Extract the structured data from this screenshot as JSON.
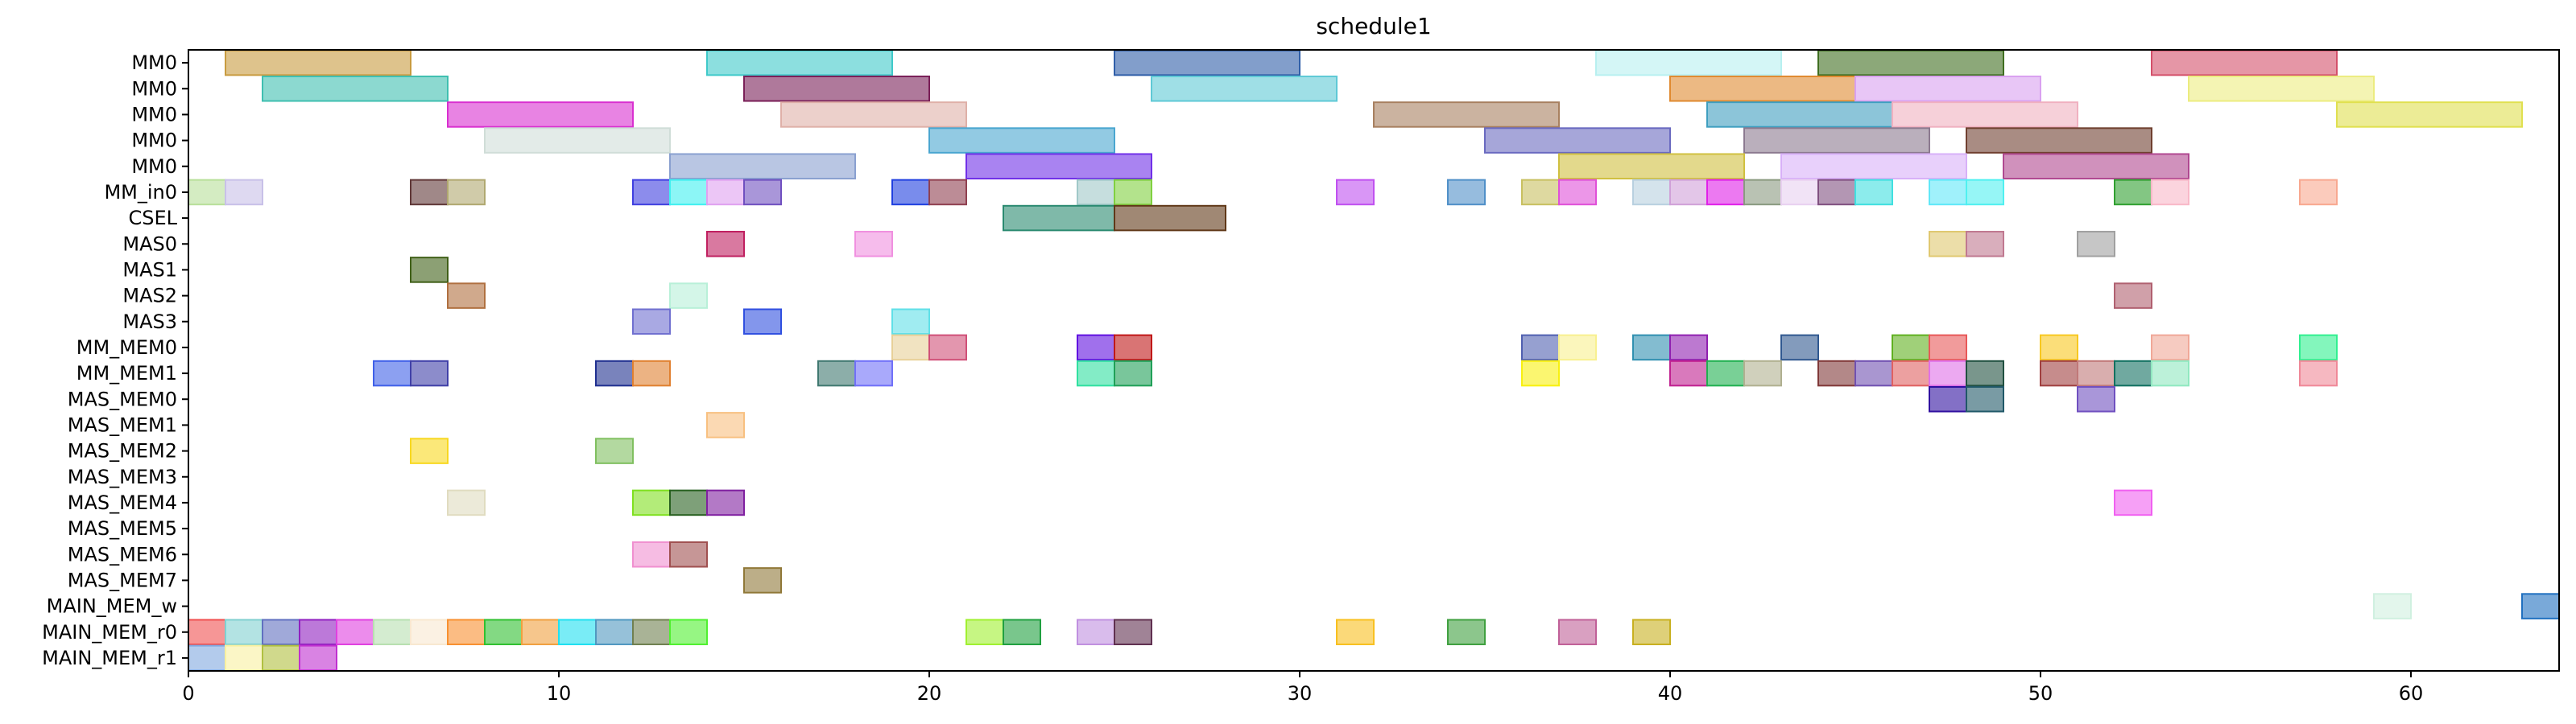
{
  "chart_data": {
    "type": "gantt",
    "title": "schedule1",
    "xlabel": "",
    "ylabel": "",
    "xlim": [
      0,
      64
    ],
    "xticks": [
      0,
      10,
      20,
      30,
      40,
      50,
      60
    ],
    "grid": false,
    "rows": [
      "MM0",
      "MM0",
      "MM0",
      "MM0",
      "MM0",
      "MM_in0",
      "CSEL",
      "MAS0",
      "MAS1",
      "MAS2",
      "MAS3",
      "MM_MEM0",
      "MM_MEM1",
      "MAS_MEM0",
      "MAS_MEM1",
      "MAS_MEM2",
      "MAS_MEM3",
      "MAS_MEM4",
      "MAS_MEM5",
      "MAS_MEM6",
      "MAS_MEM7",
      "MAIN_MEM_w",
      "MAIN_MEM_r0",
      "MAIN_MEM_r1"
    ],
    "bars": [
      {
        "row": 0,
        "start": 1,
        "end": 6,
        "color": "#c89b40"
      },
      {
        "row": 0,
        "start": 14,
        "end": 19,
        "color": "#3fc9c9"
      },
      {
        "row": 0,
        "start": 25,
        "end": 30,
        "color": "#2f5ea8"
      },
      {
        "row": 0,
        "start": 38,
        "end": 43,
        "color": "#b8f0f0"
      },
      {
        "row": 0,
        "start": 44,
        "end": 49,
        "color": "#3f6e20"
      },
      {
        "row": 0,
        "start": 53,
        "end": 58,
        "color": "#d4506a"
      },
      {
        "row": 1,
        "start": 2,
        "end": 7,
        "color": "#3fbfb0"
      },
      {
        "row": 1,
        "start": 15,
        "end": 20,
        "color": "#7a2058"
      },
      {
        "row": 1,
        "start": 26,
        "end": 31,
        "color": "#5fc9d6"
      },
      {
        "row": 1,
        "start": 40,
        "end": 45,
        "color": "#e08a30"
      },
      {
        "row": 1,
        "start": 45,
        "end": 50,
        "color": "#d9a0f0"
      },
      {
        "row": 1,
        "start": 54,
        "end": 59,
        "color": "#ecec80"
      },
      {
        "row": 2,
        "start": 7,
        "end": 12,
        "color": "#d930d0"
      },
      {
        "row": 2,
        "start": 16,
        "end": 21,
        "color": "#dfb0a8"
      },
      {
        "row": 2,
        "start": 32,
        "end": 37,
        "color": "#a88060"
      },
      {
        "row": 2,
        "start": 41,
        "end": 46,
        "color": "#3f9fc0"
      },
      {
        "row": 2,
        "start": 46,
        "end": 51,
        "color": "#f0b0c0"
      },
      {
        "row": 2,
        "start": 58,
        "end": 63,
        "color": "#e0e050"
      },
      {
        "row": 3,
        "start": 8,
        "end": 13,
        "color": "#d0ddd8"
      },
      {
        "row": 3,
        "start": 20,
        "end": 25,
        "color": "#4aa6d0"
      },
      {
        "row": 3,
        "start": 35,
        "end": 40,
        "color": "#6a6ac0"
      },
      {
        "row": 3,
        "start": 42,
        "end": 47,
        "color": "#8c7a90"
      },
      {
        "row": 3,
        "start": 48,
        "end": 53,
        "color": "#704030"
      },
      {
        "row": 4,
        "start": 13,
        "end": 18,
        "color": "#8aa0d0"
      },
      {
        "row": 4,
        "start": 21,
        "end": 26,
        "color": "#7030e8"
      },
      {
        "row": 4,
        "start": 37,
        "end": 42,
        "color": "#d0c040"
      },
      {
        "row": 4,
        "start": 43,
        "end": 48,
        "color": "#d8b0f8"
      },
      {
        "row": 4,
        "start": 49,
        "end": 54,
        "color": "#b04890"
      },
      {
        "row": 5,
        "start": 0,
        "end": 1,
        "color": "#b8e09a"
      },
      {
        "row": 5,
        "start": 1,
        "end": 2,
        "color": "#c8c0e8"
      },
      {
        "row": 5,
        "start": 6,
        "end": 7,
        "color": "#603838"
      },
      {
        "row": 5,
        "start": 7,
        "end": 8,
        "color": "#b0a870"
      },
      {
        "row": 5,
        "start": 12,
        "end": 13,
        "color": "#4040e0"
      },
      {
        "row": 5,
        "start": 13,
        "end": 14,
        "color": "#40f0f0"
      },
      {
        "row": 5,
        "start": 14,
        "end": 15,
        "color": "#e0a0f0"
      },
      {
        "row": 5,
        "start": 15,
        "end": 16,
        "color": "#7050c0"
      },
      {
        "row": 5,
        "start": 19,
        "end": 20,
        "color": "#2040e0"
      },
      {
        "row": 5,
        "start": 20,
        "end": 21,
        "color": "#904050"
      },
      {
        "row": 5,
        "start": 24,
        "end": 25,
        "color": "#a0c8c8"
      },
      {
        "row": 5,
        "start": 25,
        "end": 26,
        "color": "#80d040"
      },
      {
        "row": 5,
        "start": 31,
        "end": 32,
        "color": "#c050f0"
      },
      {
        "row": 5,
        "start": 34,
        "end": 35,
        "color": "#5090c8"
      },
      {
        "row": 5,
        "start": 36,
        "end": 37,
        "color": "#c8c060"
      },
      {
        "row": 5,
        "start": 37,
        "end": 38,
        "color": "#e050d8"
      },
      {
        "row": 5,
        "start": 39,
        "end": 40,
        "color": "#b8d0e0"
      },
      {
        "row": 5,
        "start": 40,
        "end": 41,
        "color": "#d0a0d8"
      },
      {
        "row": 5,
        "start": 41,
        "end": 42,
        "color": "#e020e8"
      },
      {
        "row": 5,
        "start": 42,
        "end": 43,
        "color": "#8a9a80"
      },
      {
        "row": 5,
        "start": 43,
        "end": 44,
        "color": "#e8d0f0"
      },
      {
        "row": 5,
        "start": 44,
        "end": 45,
        "color": "#805080"
      },
      {
        "row": 5,
        "start": 45,
        "end": 46,
        "color": "#40e0e0"
      },
      {
        "row": 5,
        "start": 47,
        "end": 48,
        "color": "#60e8f8"
      },
      {
        "row": 5,
        "start": 48,
        "end": 49,
        "color": "#50f0f0"
      },
      {
        "row": 5,
        "start": 52,
        "end": 53,
        "color": "#30a030"
      },
      {
        "row": 5,
        "start": 53,
        "end": 54,
        "color": "#f8b8c8"
      },
      {
        "row": 5,
        "start": 57,
        "end": 58,
        "color": "#f8a890"
      },
      {
        "row": 6,
        "start": 22,
        "end": 25,
        "color": "#2a8a70"
      },
      {
        "row": 6,
        "start": 25,
        "end": 28,
        "color": "#603818"
      },
      {
        "row": 7,
        "start": 14,
        "end": 15,
        "color": "#c02060"
      },
      {
        "row": 7,
        "start": 18,
        "end": 19,
        "color": "#f090e0"
      },
      {
        "row": 7,
        "start": 47,
        "end": 48,
        "color": "#e0c870"
      },
      {
        "row": 7,
        "start": 48,
        "end": 49,
        "color": "#c07890"
      },
      {
        "row": 7,
        "start": 51,
        "end": 52,
        "color": "#a0a0a0"
      },
      {
        "row": 8,
        "start": 6,
        "end": 7,
        "color": "#406018"
      },
      {
        "row": 9,
        "start": 7,
        "end": 8,
        "color": "#b07040"
      },
      {
        "row": 9,
        "start": 13,
        "end": 14,
        "color": "#b8f0d8"
      },
      {
        "row": 9,
        "start": 52,
        "end": 53,
        "color": "#b06070"
      },
      {
        "row": 10,
        "start": 12,
        "end": 13,
        "color": "#7070d0"
      },
      {
        "row": 10,
        "start": 15,
        "end": 16,
        "color": "#3050e0"
      },
      {
        "row": 10,
        "start": 19,
        "end": 20,
        "color": "#60e0e8"
      },
      {
        "row": 11,
        "start": 19,
        "end": 20,
        "color": "#e8d098"
      },
      {
        "row": 11,
        "start": 20,
        "end": 21,
        "color": "#d05078"
      },
      {
        "row": 11,
        "start": 24,
        "end": 25,
        "color": "#6010e0"
      },
      {
        "row": 11,
        "start": 25,
        "end": 26,
        "color": "#c01818"
      },
      {
        "row": 11,
        "start": 36,
        "end": 37,
        "color": "#5060b0"
      },
      {
        "row": 11,
        "start": 37,
        "end": 38,
        "color": "#f8f090"
      },
      {
        "row": 11,
        "start": 39,
        "end": 40,
        "color": "#3090b0"
      },
      {
        "row": 11,
        "start": 40,
        "end": 41,
        "color": "#9020b0"
      },
      {
        "row": 11,
        "start": 43,
        "end": 44,
        "color": "#305890"
      },
      {
        "row": 11,
        "start": 46,
        "end": 47,
        "color": "#60b020"
      },
      {
        "row": 11,
        "start": 47,
        "end": 48,
        "color": "#e85858"
      },
      {
        "row": 11,
        "start": 50,
        "end": 51,
        "color": "#f8c820"
      },
      {
        "row": 11,
        "start": 53,
        "end": 54,
        "color": "#f0a898"
      },
      {
        "row": 11,
        "start": 57,
        "end": 58,
        "color": "#30f090"
      },
      {
        "row": 12,
        "start": 5,
        "end": 6,
        "color": "#4060e8"
      },
      {
        "row": 12,
        "start": 6,
        "end": 7,
        "color": "#4040a8"
      },
      {
        "row": 12,
        "start": 11,
        "end": 12,
        "color": "#203090"
      },
      {
        "row": 12,
        "start": 12,
        "end": 13,
        "color": "#e08030"
      },
      {
        "row": 12,
        "start": 17,
        "end": 18,
        "color": "#407870"
      },
      {
        "row": 12,
        "start": 18,
        "end": 19,
        "color": "#7070f8"
      },
      {
        "row": 12,
        "start": 24,
        "end": 25,
        "color": "#30e0a0"
      },
      {
        "row": 12,
        "start": 25,
        "end": 26,
        "color": "#20a058"
      },
      {
        "row": 12,
        "start": 36,
        "end": 37,
        "color": "#f8f010"
      },
      {
        "row": 12,
        "start": 40,
        "end": 41,
        "color": "#c02090"
      },
      {
        "row": 12,
        "start": 41,
        "end": 42,
        "color": "#20b050"
      },
      {
        "row": 12,
        "start": 42,
        "end": 43,
        "color": "#b0b090"
      },
      {
        "row": 12,
        "start": 44,
        "end": 45,
        "color": "#803838"
      },
      {
        "row": 12,
        "start": 45,
        "end": 46,
        "color": "#7050b0"
      },
      {
        "row": 12,
        "start": 46,
        "end": 47,
        "color": "#e06060"
      },
      {
        "row": 12,
        "start": 47,
        "end": 48,
        "color": "#e070e8"
      },
      {
        "row": 12,
        "start": 48,
        "end": 49,
        "color": "#205040"
      },
      {
        "row": 12,
        "start": 50,
        "end": 51,
        "color": "#a04040"
      },
      {
        "row": 12,
        "start": 51,
        "end": 52,
        "color": "#c07878"
      },
      {
        "row": 12,
        "start": 52,
        "end": 53,
        "color": "#107060"
      },
      {
        "row": 12,
        "start": 53,
        "end": 54,
        "color": "#90e8c0"
      },
      {
        "row": 12,
        "start": 57,
        "end": 58,
        "color": "#f08898"
      },
      {
        "row": 13,
        "start": 47,
        "end": 48,
        "color": "#3010a0"
      },
      {
        "row": 13,
        "start": 48,
        "end": 49,
        "color": "#205868"
      },
      {
        "row": 13,
        "start": 51,
        "end": 52,
        "color": "#7050c0"
      },
      {
        "row": 14,
        "start": 14,
        "end": 15,
        "color": "#f8c080"
      },
      {
        "row": 15,
        "start": 6,
        "end": 7,
        "color": "#f8d820"
      },
      {
        "row": 15,
        "start": 11,
        "end": 12,
        "color": "#80c060"
      },
      {
        "row": 17,
        "start": 7,
        "end": 8,
        "color": "#e0dcc0"
      },
      {
        "row": 17,
        "start": 12,
        "end": 13,
        "color": "#80e020"
      },
      {
        "row": 17,
        "start": 13,
        "end": 14,
        "color": "#286020"
      },
      {
        "row": 17,
        "start": 14,
        "end": 15,
        "color": "#8020a0"
      },
      {
        "row": 17,
        "start": 52,
        "end": 53,
        "color": "#f060f0"
      },
      {
        "row": 19,
        "start": 12,
        "end": 13,
        "color": "#f090d0"
      },
      {
        "row": 19,
        "start": 13,
        "end": 14,
        "color": "#a05050"
      },
      {
        "row": 20,
        "start": 15,
        "end": 16,
        "color": "#907838"
      },
      {
        "row": 21,
        "start": 59,
        "end": 60,
        "color": "#d0f0e0"
      },
      {
        "row": 21,
        "start": 63,
        "end": 64,
        "color": "#2070c0"
      },
      {
        "row": 22,
        "start": 0,
        "end": 1,
        "color": "#f05050"
      },
      {
        "row": 22,
        "start": 1,
        "end": 2,
        "color": "#80d0d0"
      },
      {
        "row": 22,
        "start": 2,
        "end": 3,
        "color": "#6070c0"
      },
      {
        "row": 22,
        "start": 3,
        "end": 4,
        "color": "#9020c0"
      },
      {
        "row": 22,
        "start": 4,
        "end": 5,
        "color": "#e040e0"
      },
      {
        "row": 22,
        "start": 5,
        "end": 6,
        "color": "#b8e0b0"
      },
      {
        "row": 22,
        "start": 6,
        "end": 7,
        "color": "#f8e8d0"
      },
      {
        "row": 22,
        "start": 7,
        "end": 8,
        "color": "#f89030"
      },
      {
        "row": 22,
        "start": 8,
        "end": 9,
        "color": "#30c030"
      },
      {
        "row": 22,
        "start": 9,
        "end": 10,
        "color": "#f0a040"
      },
      {
        "row": 22,
        "start": 10,
        "end": 11,
        "color": "#20e0f0"
      },
      {
        "row": 22,
        "start": 11,
        "end": 12,
        "color": "#5098c0"
      },
      {
        "row": 22,
        "start": 12,
        "end": 13,
        "color": "#708050"
      },
      {
        "row": 22,
        "start": 13,
        "end": 14,
        "color": "#50f030"
      },
      {
        "row": 22,
        "start": 21,
        "end": 22,
        "color": "#a0f030"
      },
      {
        "row": 22,
        "start": 22,
        "end": 23,
        "color": "#20a040"
      },
      {
        "row": 22,
        "start": 24,
        "end": 25,
        "color": "#c090e0"
      },
      {
        "row": 22,
        "start": 25,
        "end": 26,
        "color": "#603050"
      },
      {
        "row": 22,
        "start": 31,
        "end": 32,
        "color": "#f8c020"
      },
      {
        "row": 22,
        "start": 34,
        "end": 35,
        "color": "#40a040"
      },
      {
        "row": 22,
        "start": 37,
        "end": 38,
        "color": "#c06098"
      },
      {
        "row": 22,
        "start": 39,
        "end": 40,
        "color": "#c8b020"
      },
      {
        "row": 23,
        "start": 0,
        "end": 1,
        "color": "#80a8e0"
      },
      {
        "row": 23,
        "start": 1,
        "end": 2,
        "color": "#f8f0a0"
      },
      {
        "row": 23,
        "start": 2,
        "end": 3,
        "color": "#b0c040"
      },
      {
        "row": 23,
        "start": 3,
        "end": 4,
        "color": "#c030d0"
      }
    ]
  }
}
